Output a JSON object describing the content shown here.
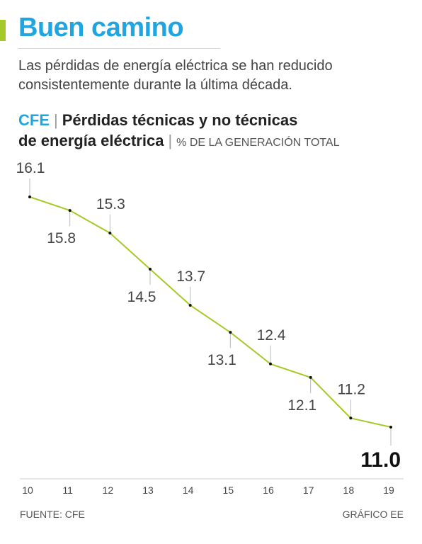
{
  "header": {
    "title": "Buen camino",
    "subtitle": "Las pérdidas de energía eléctrica se han reducido consistentemente durante la última década."
  },
  "chart_heading": {
    "brand": "CFE",
    "title_line1": "Pérdidas técnicas y no técnicas",
    "title_line2": "de energía eléctrica",
    "units": "% DE LA GENERACIÓN TOTAL"
  },
  "footer": {
    "source": "FUENTE: CFE",
    "credit": "GRÁFICO EE"
  },
  "colors": {
    "title": "#1fa6e0",
    "accent": "#a6c92a",
    "line": "#a6c92a"
  },
  "chart_data": {
    "type": "line",
    "x": [
      "10",
      "11",
      "12",
      "13",
      "14",
      "15",
      "16",
      "17",
      "18",
      "19"
    ],
    "series": [
      {
        "values": [
          16.1,
          15.8,
          15.3,
          14.5,
          13.7,
          13.1,
          12.4,
          12.1,
          11.2,
          11.0
        ]
      }
    ],
    "data_labels": [
      "16.1",
      "15.8",
      "15.3",
      "14.5",
      "13.7",
      "13.1",
      "12.4",
      "12.1",
      "11.2",
      "11.0"
    ],
    "highlight_last": true,
    "grid": false,
    "legend": "none"
  }
}
